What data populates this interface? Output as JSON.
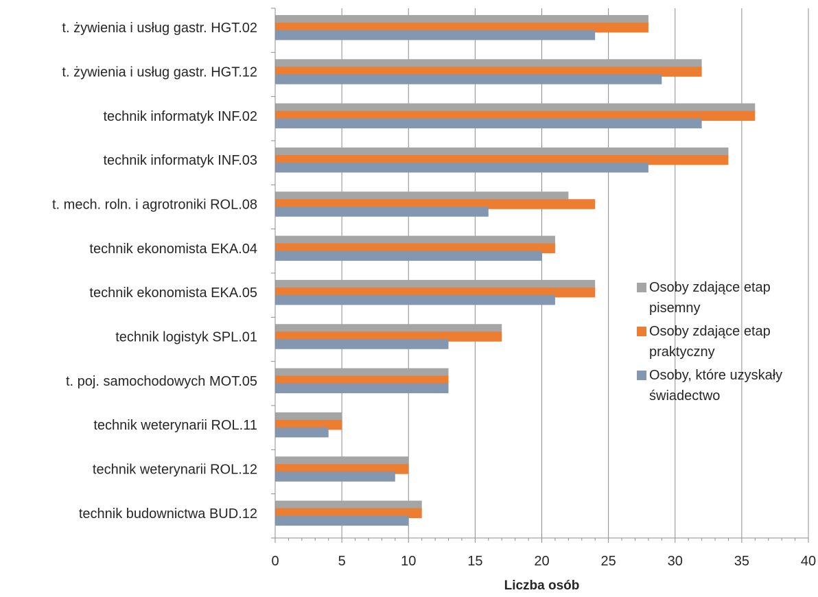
{
  "chart_data": {
    "type": "bar",
    "orientation": "horizontal",
    "xlabel": "Liczba osób",
    "ylabel": "",
    "xlim": [
      0,
      40
    ],
    "x_ticks": [
      0,
      5,
      10,
      15,
      20,
      25,
      30,
      35,
      40
    ],
    "grid": true,
    "legend_position": "right",
    "categories": [
      "t. żywienia i usług gastr. HGT.02",
      "t. żywienia i usług gastr. HGT.12",
      "technik informatyk INF.02",
      "technik informatyk INF.03",
      "t. mech. roln. i agrotroniki ROL.08",
      "technik ekonomista EKA.04",
      "technik ekonomista EKA.05",
      "technik logistyk SPL.01",
      "t. poj. samochodowych MOT.05",
      "technik weterynarii ROL.11",
      "technik weterynarii ROL.12",
      "technik budownictwa BUD.12"
    ],
    "series": [
      {
        "name": "Osoby zdające etap pisemny",
        "legend_lines": [
          "Osoby zdające etap",
          "pisemny"
        ],
        "color": "#a5a5a5",
        "values": [
          28,
          32,
          36,
          34,
          22,
          21,
          24,
          17,
          13,
          5,
          10,
          11
        ]
      },
      {
        "name": "Osoby zdające etap praktyczny",
        "legend_lines": [
          "Osoby zdające etap",
          "praktyczny"
        ],
        "color": "#ed7d31",
        "values": [
          28,
          32,
          36,
          34,
          24,
          21,
          24,
          17,
          13,
          5,
          10,
          11
        ]
      },
      {
        "name": "Osoby, które uzyskały świadectwo",
        "legend_lines": [
          "Osoby, które uzyskały",
          "świadectwo"
        ],
        "color": "#8497b0",
        "values": [
          24,
          29,
          32,
          28,
          16,
          20,
          21,
          13,
          13,
          4,
          9,
          10
        ]
      }
    ]
  }
}
